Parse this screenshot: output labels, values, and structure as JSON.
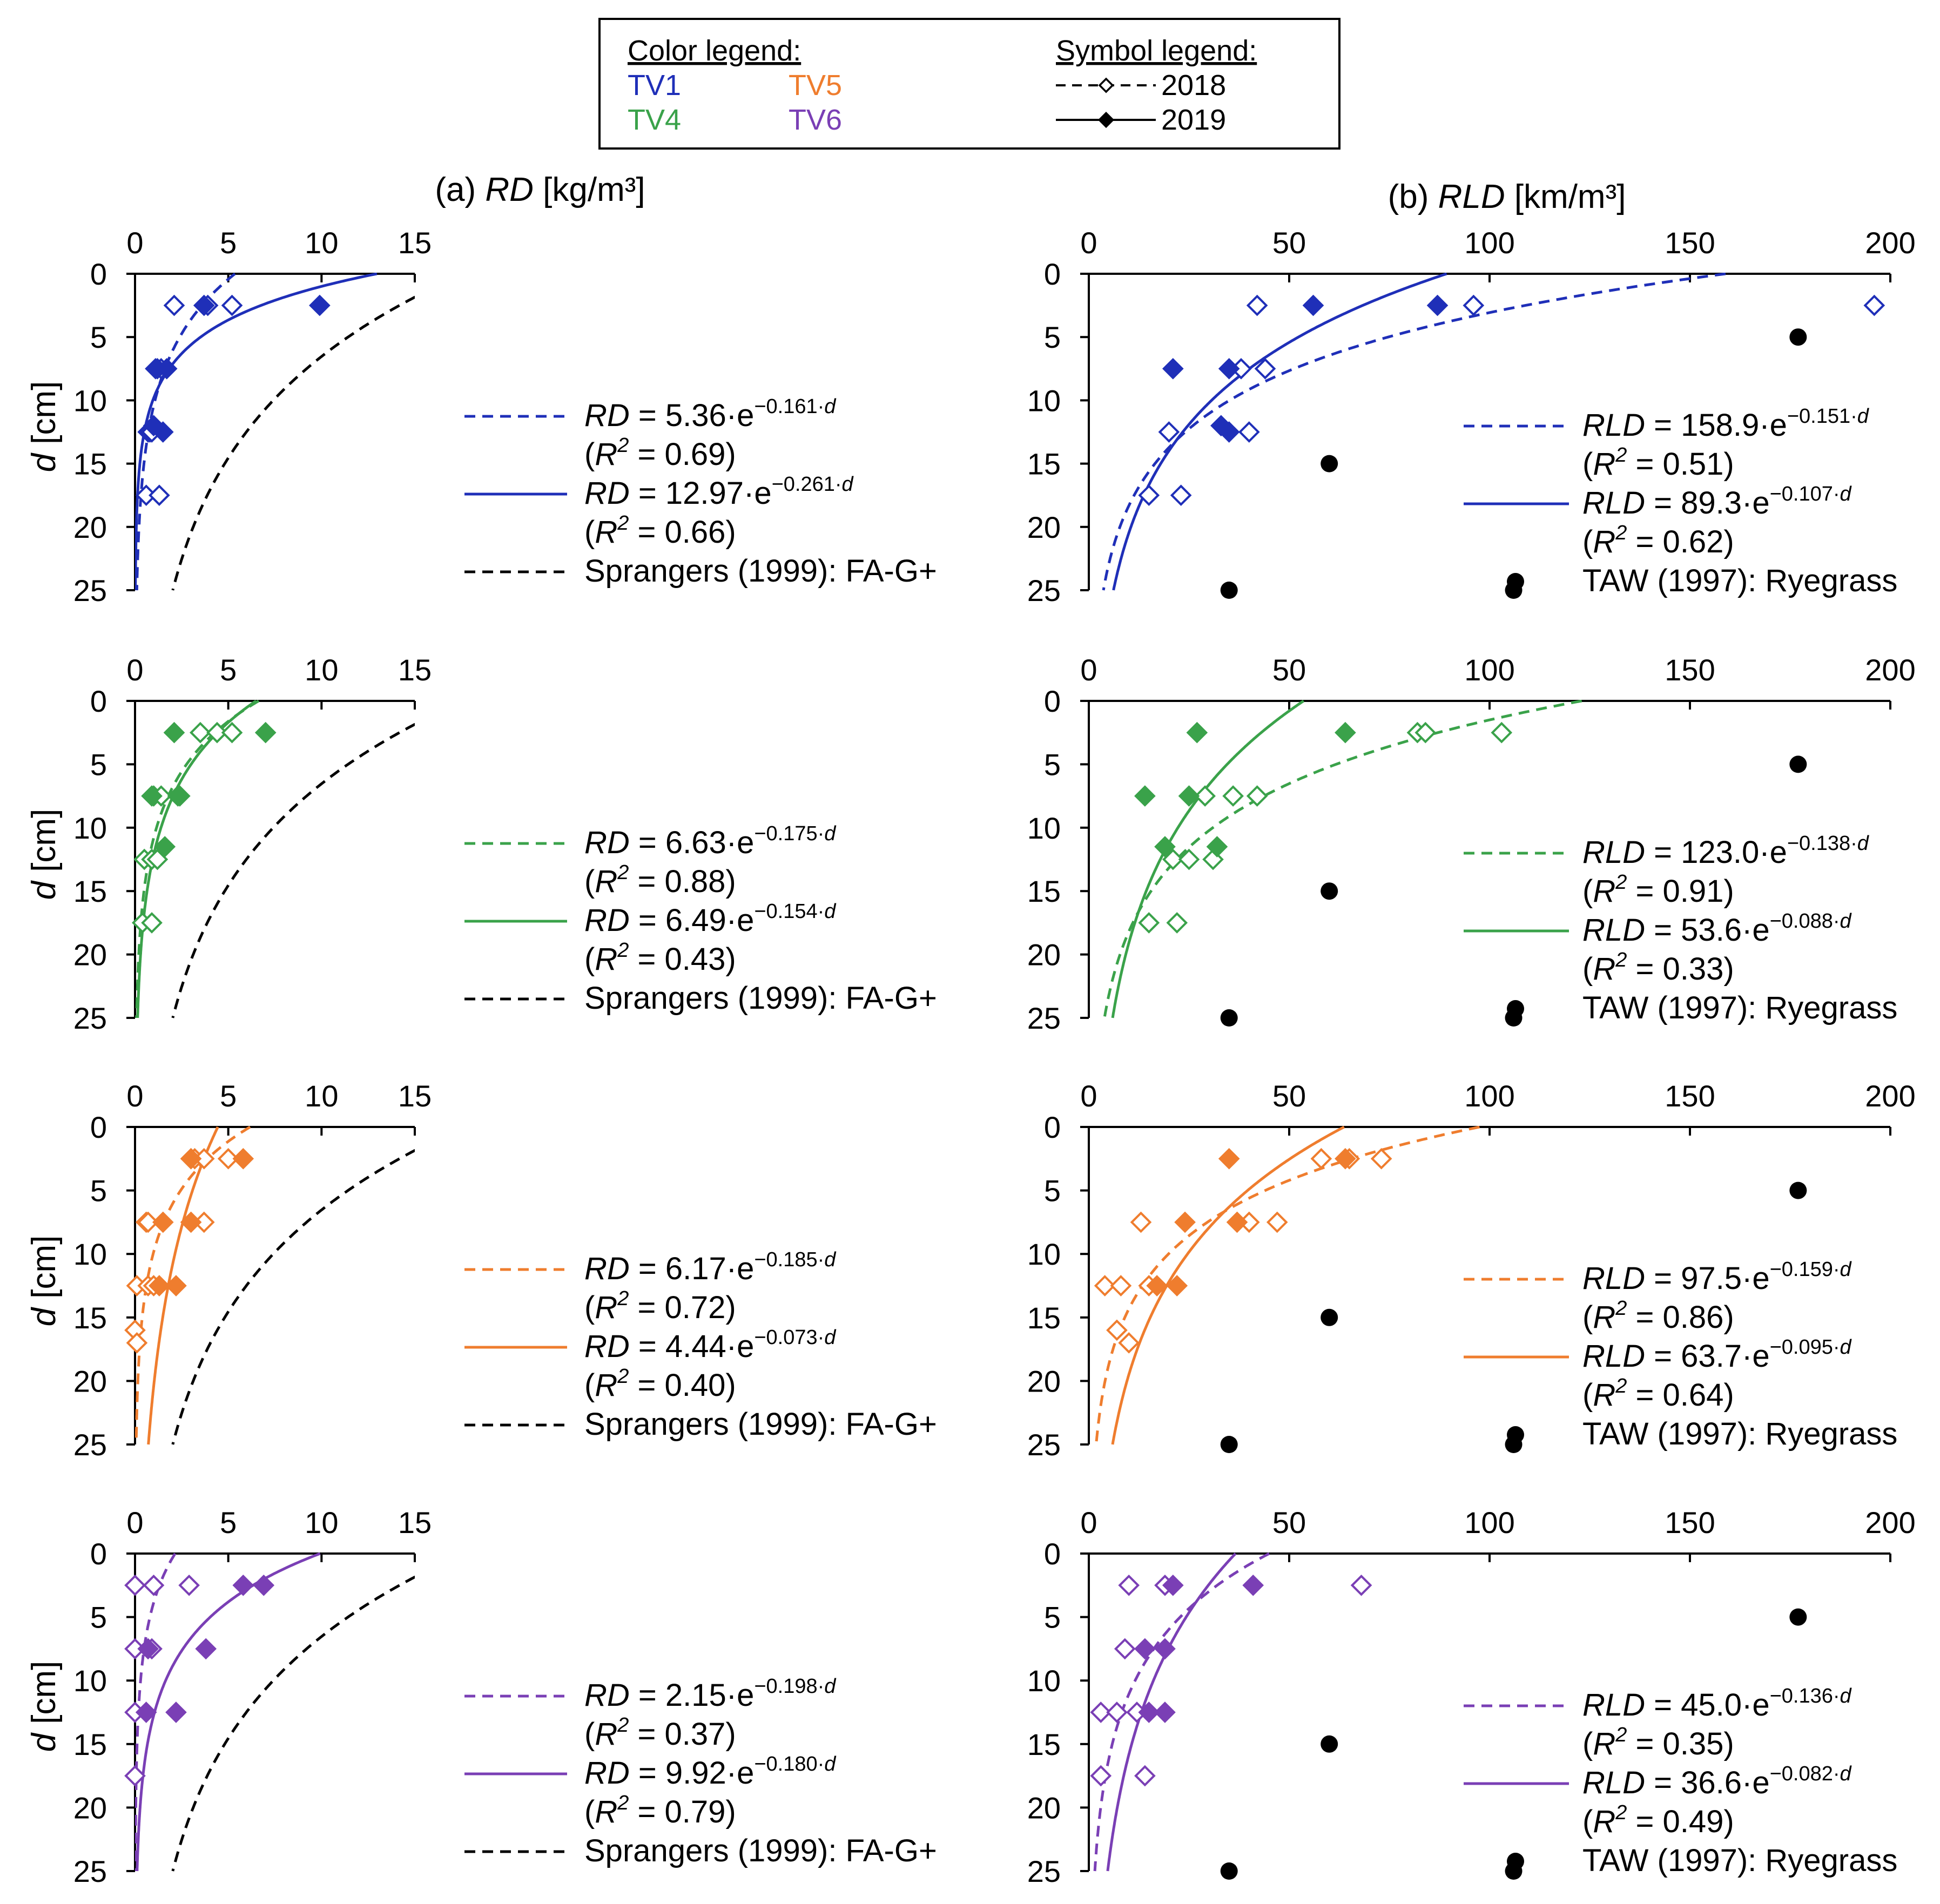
{
  "legend": {
    "color_title": "Color legend:",
    "symbol_title": "Symbol legend:",
    "treatments": [
      {
        "label": "TV1",
        "color": "#1f2fb8"
      },
      {
        "label": "TV5",
        "color": "#ef7d2e"
      },
      {
        "label": "TV4",
        "color": "#3aa24a"
      },
      {
        "label": "TV6",
        "color": "#7a3fb5"
      }
    ],
    "symbols": [
      {
        "label": "2018",
        "style": "dashed line, open diamond"
      },
      {
        "label": "2019",
        "style": "solid line, filled diamond"
      }
    ]
  },
  "panel_titles": {
    "a": {
      "prefix": "(a) ",
      "var": "RD",
      "unit": " [kg/m³]"
    },
    "b": {
      "prefix": "(b) ",
      "var": "RLD",
      "unit": " [km/m³]"
    }
  },
  "y_axis_label": {
    "var": "d",
    "unit": " [cm]"
  },
  "colors": {
    "reference": "#000000"
  },
  "chart_data": [
    {
      "type": "scatter",
      "id": "a1",
      "treatment": "TV1",
      "color": "#1f2fb8",
      "xlim": [
        0,
        15
      ],
      "ylim": [
        0,
        25
      ],
      "xticks": [
        0,
        5,
        10,
        15
      ],
      "yticks": [
        0,
        5,
        10,
        15,
        20,
        25
      ],
      "points2018": [
        [
          2.1,
          2.5
        ],
        [
          3.9,
          2.5
        ],
        [
          5.2,
          2.5
        ],
        [
          1.1,
          7.5
        ],
        [
          1.4,
          7.5
        ],
        [
          0.7,
          12.5
        ],
        [
          0.8,
          12.5
        ],
        [
          0.9,
          12.5
        ],
        [
          0.6,
          17.5
        ],
        [
          1.3,
          17.5
        ]
      ],
      "points2019": [
        [
          3.7,
          2.5
        ],
        [
          9.9,
          2.5
        ],
        [
          1.2,
          7.5
        ],
        [
          1.7,
          7.5
        ],
        [
          1.0,
          12.0
        ],
        [
          1.5,
          12.5
        ]
      ],
      "fit2018": {
        "a": 5.36,
        "b": 0.161
      },
      "fit2019": {
        "a": 12.97,
        "b": 0.261
      },
      "reference": {
        "a": 17.6,
        "b": 0.0865
      },
      "legend": [
        {
          "pre": "RD",
          "eq": " = 5.36·e",
          "exp": "−0.161·",
          "r2": "0.69"
        },
        {
          "pre": "RD",
          "eq": " = 12.97·e",
          "exp": "−0.261·",
          "r2": "0.66"
        }
      ],
      "reference_label": "Sprangers (1999): FA-G+"
    },
    {
      "type": "scatter",
      "id": "b1",
      "treatment": "TV1",
      "color": "#1f2fb8",
      "xlim": [
        0,
        200
      ],
      "ylim": [
        0,
        25
      ],
      "xticks": [
        0,
        50,
        100,
        150,
        200
      ],
      "yticks": [
        0,
        5,
        10,
        15,
        20,
        25
      ],
      "points2018": [
        [
          42,
          2.5
        ],
        [
          96,
          2.5
        ],
        [
          196,
          2.5
        ],
        [
          38,
          7.5
        ],
        [
          44,
          7.5
        ],
        [
          20,
          12.5
        ],
        [
          40,
          12.5
        ],
        [
          15,
          17.5
        ],
        [
          23,
          17.5
        ]
      ],
      "points2019": [
        [
          56,
          2.5
        ],
        [
          87,
          2.5
        ],
        [
          21,
          7.5
        ],
        [
          35,
          7.5
        ],
        [
          33,
          12
        ],
        [
          35,
          12.5
        ]
      ],
      "fit2018": {
        "a": 158.9,
        "b": 0.151
      },
      "fit2019": {
        "a": 89.3,
        "b": 0.107
      },
      "reference_points": [
        [
          177,
          5
        ],
        [
          60,
          15
        ],
        [
          35,
          25
        ],
        [
          106,
          25
        ]
      ],
      "legend": [
        {
          "pre": "RLD",
          "eq": " = 158.9·e",
          "exp": "−0.151·",
          "r2": "0.51"
        },
        {
          "pre": "RLD",
          "eq": " = 89.3·e",
          "exp": "−0.107·",
          "r2": "0.62"
        }
      ],
      "reference_label": "TAW (1997): Ryegrass"
    },
    {
      "type": "scatter",
      "id": "a2",
      "treatment": "TV4",
      "color": "#3aa24a",
      "xlim": [
        0,
        15
      ],
      "ylim": [
        0,
        25
      ],
      "xticks": [
        0,
        5,
        10,
        15
      ],
      "yticks": [
        0,
        5,
        10,
        15,
        20,
        25
      ],
      "points2018": [
        [
          3.5,
          2.5
        ],
        [
          4.4,
          2.5
        ],
        [
          5.2,
          2.5
        ],
        [
          1.0,
          7.5
        ],
        [
          1.4,
          7.5
        ],
        [
          2.4,
          7.5
        ],
        [
          0.5,
          12.5
        ],
        [
          0.9,
          12.5
        ],
        [
          1.2,
          12.5
        ],
        [
          0.4,
          17.5
        ],
        [
          0.9,
          17.5
        ]
      ],
      "points2019": [
        [
          2.1,
          2.5
        ],
        [
          7.0,
          2.5
        ],
        [
          0.9,
          7.5
        ],
        [
          2.3,
          7.5
        ],
        [
          1.6,
          11.5
        ]
      ],
      "fit2018": {
        "a": 6.63,
        "b": 0.175
      },
      "fit2019": {
        "a": 6.49,
        "b": 0.154
      },
      "reference": {
        "a": 17.6,
        "b": 0.0865
      },
      "legend": [
        {
          "pre": "RD",
          "eq": " = 6.63·e",
          "exp": "−0.175·",
          "r2": "0.88"
        },
        {
          "pre": "RD",
          "eq": " = 6.49·e",
          "exp": "−0.154·",
          "r2": "0.43"
        }
      ],
      "reference_label": "Sprangers (1999): FA-G+"
    },
    {
      "type": "scatter",
      "id": "b2",
      "treatment": "TV4",
      "color": "#3aa24a",
      "xlim": [
        0,
        200
      ],
      "ylim": [
        0,
        25
      ],
      "xticks": [
        0,
        50,
        100,
        150,
        200
      ],
      "yticks": [
        0,
        5,
        10,
        15,
        20,
        25
      ],
      "points2018": [
        [
          82,
          2.5
        ],
        [
          84,
          2.5
        ],
        [
          103,
          2.5
        ],
        [
          29,
          7.5
        ],
        [
          36,
          7.5
        ],
        [
          42,
          7.5
        ],
        [
          21,
          12.5
        ],
        [
          25,
          12.5
        ],
        [
          31,
          12.5
        ],
        [
          15,
          17.5
        ],
        [
          22,
          17.5
        ]
      ],
      "points2019": [
        [
          27,
          2.5
        ],
        [
          64,
          2.5
        ],
        [
          14,
          7.5
        ],
        [
          25,
          7.5
        ],
        [
          19,
          11.5
        ],
        [
          32,
          11.5
        ]
      ],
      "fit2018": {
        "a": 123.0,
        "b": 0.138
      },
      "fit2019": {
        "a": 53.6,
        "b": 0.088
      },
      "reference_points": [
        [
          177,
          5
        ],
        [
          60,
          15
        ],
        [
          35,
          25
        ],
        [
          106,
          25
        ]
      ],
      "legend": [
        {
          "pre": "RLD",
          "eq": " = 123.0·e",
          "exp": "−0.138·",
          "r2": "0.91"
        },
        {
          "pre": "RLD",
          "eq": " = 53.6·e",
          "exp": "−0.088·",
          "r2": "0.33"
        }
      ],
      "reference_label": "TAW (1997): Ryegrass"
    },
    {
      "type": "scatter",
      "id": "a3",
      "treatment": "TV5",
      "color": "#ef7d2e",
      "xlim": [
        0,
        15
      ],
      "ylim": [
        0,
        25
      ],
      "xticks": [
        0,
        5,
        10,
        15
      ],
      "yticks": [
        0,
        5,
        10,
        15,
        20,
        25
      ],
      "points2018": [
        [
          3.0,
          2.5
        ],
        [
          3.2,
          2.5
        ],
        [
          3.7,
          2.5
        ],
        [
          5.0,
          2.5
        ],
        [
          0.6,
          7.5
        ],
        [
          0.7,
          7.5
        ],
        [
          3.7,
          7.5
        ],
        [
          0.1,
          12.5
        ],
        [
          0.7,
          12.5
        ],
        [
          1.0,
          12.5
        ],
        [
          0.0,
          16
        ],
        [
          0.1,
          17
        ]
      ],
      "points2019": [
        [
          3.0,
          2.5
        ],
        [
          5.8,
          2.5
        ],
        [
          1.5,
          7.5
        ],
        [
          3.0,
          7.5
        ],
        [
          1.3,
          12.5
        ],
        [
          2.2,
          12.5
        ]
      ],
      "fit2018": {
        "a": 6.17,
        "b": 0.185
      },
      "fit2019": {
        "a": 4.44,
        "b": 0.073
      },
      "reference": {
        "a": 17.6,
        "b": 0.0865
      },
      "legend": [
        {
          "pre": "RD",
          "eq": " = 6.17·e",
          "exp": "−0.185·",
          "r2": "0.72"
        },
        {
          "pre": "RD",
          "eq": " = 4.44·e",
          "exp": "−0.073·",
          "r2": "0.40"
        }
      ],
      "reference_label": "Sprangers (1999): FA-G+"
    },
    {
      "type": "scatter",
      "id": "b3",
      "treatment": "TV5",
      "color": "#ef7d2e",
      "xlim": [
        0,
        200
      ],
      "ylim": [
        0,
        25
      ],
      "xticks": [
        0,
        50,
        100,
        150,
        200
      ],
      "yticks": [
        0,
        5,
        10,
        15,
        20,
        25
      ],
      "points2018": [
        [
          58,
          2.5
        ],
        [
          65,
          2.5
        ],
        [
          73,
          2.5
        ],
        [
          13,
          7.5
        ],
        [
          40,
          7.5
        ],
        [
          47,
          7.5
        ],
        [
          4,
          12.5
        ],
        [
          8,
          12.5
        ],
        [
          15,
          12.5
        ],
        [
          7,
          16
        ],
        [
          10,
          17
        ]
      ],
      "points2019": [
        [
          35,
          2.5
        ],
        [
          64,
          2.5
        ],
        [
          24,
          7.5
        ],
        [
          37,
          7.5
        ],
        [
          17,
          12.5
        ],
        [
          22,
          12.5
        ]
      ],
      "fit2018": {
        "a": 97.5,
        "b": 0.159
      },
      "fit2019": {
        "a": 63.7,
        "b": 0.095
      },
      "reference_points": [
        [
          177,
          5
        ],
        [
          60,
          15
        ],
        [
          35,
          25
        ],
        [
          106,
          25
        ]
      ],
      "legend": [
        {
          "pre": "RLD",
          "eq": " = 97.5·e",
          "exp": "−0.159·",
          "r2": "0.86"
        },
        {
          "pre": "RLD",
          "eq": " = 63.7·e",
          "exp": "−0.095·",
          "r2": "0.64"
        }
      ],
      "reference_label": "TAW (1997): Ryegrass"
    },
    {
      "type": "scatter",
      "id": "a4",
      "treatment": "TV6",
      "color": "#7a3fb5",
      "xlim": [
        0,
        15
      ],
      "ylim": [
        0,
        25
      ],
      "xticks": [
        0,
        5,
        10,
        15
      ],
      "yticks": [
        0,
        5,
        10,
        15,
        20,
        25
      ],
      "points2018": [
        [
          0.0,
          2.5
        ],
        [
          1.0,
          2.5
        ],
        [
          2.9,
          2.5
        ],
        [
          0.0,
          7.5
        ],
        [
          0.9,
          7.5
        ],
        [
          0.0,
          12.5
        ],
        [
          0.0,
          17.5
        ]
      ],
      "points2019": [
        [
          5.8,
          2.5
        ],
        [
          6.9,
          2.5
        ],
        [
          0.7,
          7.5
        ],
        [
          3.8,
          7.5
        ],
        [
          0.6,
          12.5
        ],
        [
          2.2,
          12.5
        ]
      ],
      "fit2018": {
        "a": 2.15,
        "b": 0.198
      },
      "fit2019": {
        "a": 9.92,
        "b": 0.18
      },
      "reference": {
        "a": 17.6,
        "b": 0.0865
      },
      "legend": [
        {
          "pre": "RD",
          "eq": " = 2.15·e",
          "exp": "−0.198·",
          "r2": "0.37"
        },
        {
          "pre": "RD",
          "eq": " = 9.92·e",
          "exp": "−0.180·",
          "r2": "0.79"
        }
      ],
      "reference_label": "Sprangers (1999): FA-G+"
    },
    {
      "type": "scatter",
      "id": "b4",
      "treatment": "TV6",
      "color": "#7a3fb5",
      "xlim": [
        0,
        200
      ],
      "ylim": [
        0,
        25
      ],
      "xticks": [
        0,
        50,
        100,
        150,
        200
      ],
      "yticks": [
        0,
        5,
        10,
        15,
        20,
        25
      ],
      "points2018": [
        [
          10,
          2.5
        ],
        [
          19,
          2.5
        ],
        [
          68,
          2.5
        ],
        [
          9,
          7.5
        ],
        [
          3,
          12.5
        ],
        [
          7,
          12.5
        ],
        [
          12,
          12.5
        ],
        [
          3,
          17.5
        ],
        [
          14,
          17.5
        ]
      ],
      "points2019": [
        [
          21,
          2.5
        ],
        [
          41,
          2.5
        ],
        [
          14,
          7.5
        ],
        [
          19,
          7.5
        ],
        [
          15,
          12.5
        ],
        [
          19,
          12.5
        ]
      ],
      "fit2018": {
        "a": 45.0,
        "b": 0.136
      },
      "fit2019": {
        "a": 36.6,
        "b": 0.082
      },
      "reference_points": [
        [
          177,
          5
        ],
        [
          60,
          15
        ],
        [
          35,
          25
        ],
        [
          106,
          25
        ]
      ],
      "legend": [
        {
          "pre": "RLD",
          "eq": " = 45.0·e",
          "exp": "−0.136·",
          "r2": "0.35"
        },
        {
          "pre": "RLD",
          "eq": " = 36.6·e",
          "exp": "−0.082·",
          "r2": "0.49"
        }
      ],
      "reference_label": "TAW (1997): Ryegrass"
    }
  ]
}
